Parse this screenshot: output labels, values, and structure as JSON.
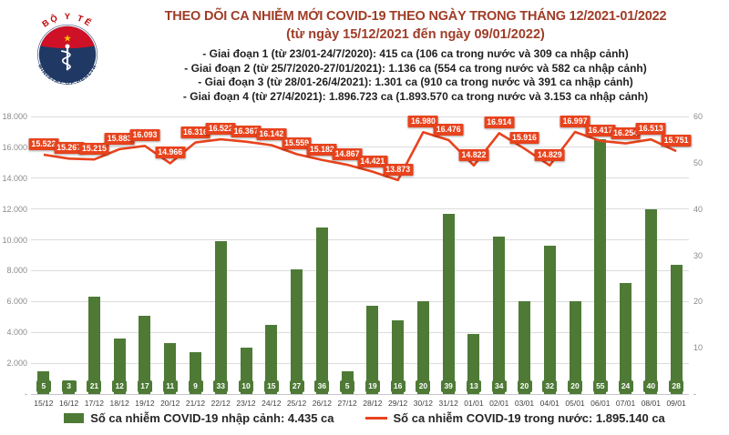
{
  "logo": {
    "arc_top": "BỘ Y TẾ",
    "arc_bottom": "MINISTRY OF HEALTH"
  },
  "header": {
    "title": "THEO DÕI CA NHIỄM MỚI COVID-19 THEO NGÀY TRONG THÁNG 12/2021-01/2022",
    "subtitle": "(từ ngày 15/12/2021 đến ngày 09/01/2022)",
    "bullets": [
      "- Giai đoạn 1 (từ 23/01-24/7/2020): 415 ca (106 ca trong nước và 309 ca nhập cảnh)",
      "- Giai đoạn 2 (từ 25/7/2020-27/01/2021): 1.136 ca (554 ca trong nước và 582 ca nhập cảnh)",
      "- Giai đoạn 3 (từ 28/01-26/4/2021): 1.301 ca (910 ca trong nước và 391 ca nhập cảnh)",
      "- Giai đoạn 4 (từ 27/4/2021): 1.896.723 ca (1.893.570 ca trong nước và 3.153 ca nhập cảnh)"
    ]
  },
  "chart_data": {
    "type": "combo-bar-line",
    "categories": [
      "15/12",
      "16/12",
      "17/12",
      "18/12",
      "19/12",
      "20/12",
      "21/12",
      "22/12",
      "23/12",
      "24/12",
      "25/12",
      "26/12",
      "27/12",
      "28/12",
      "29/12",
      "30/12",
      "31/12",
      "01/01",
      "02/01",
      "03/01",
      "04/01",
      "05/01",
      "06/01",
      "07/01",
      "08/01",
      "09/01"
    ],
    "series": [
      {
        "name": "Số ca nhiễm COVID-19 nhập cảnh",
        "chart": "bar",
        "axis": "right",
        "values": [
          5,
          3,
          21,
          12,
          17,
          11,
          9,
          33,
          10,
          15,
          27,
          36,
          5,
          19,
          16,
          20,
          39,
          13,
          34,
          20,
          32,
          20,
          55,
          24,
          40,
          28
        ]
      },
      {
        "name": "Số ca nhiễm COVID-19 trong nước",
        "chart": "line",
        "axis": "left",
        "values": [
          15522,
          15267,
          15215,
          15883,
          16093,
          14966,
          16316,
          16522,
          16367,
          16142,
          15559,
          15182,
          14867,
          14421,
          13873,
          16980,
          16476,
          14822,
          16914,
          15916,
          14829,
          16997,
          16417,
          16254,
          16513,
          15751
        ]
      }
    ],
    "left_axis": {
      "min": 0,
      "max": 18000,
      "step": 2000,
      "zero_label": "-"
    },
    "right_axis": {
      "min": 0,
      "max": 60,
      "step": 10,
      "zero_label": "-"
    },
    "grid": true,
    "legend_position": "bottom",
    "legend": [
      {
        "label": "Số ca nhiễm COVID-19 nhập cảnh: 4.435 ca"
      },
      {
        "label": "Số ca nhiễm COVID-19 trong nước: 1.895.140 ca"
      }
    ]
  },
  "colors": {
    "bar": "#4E7A36",
    "line": "#E8431D",
    "title": "#A03C26",
    "grid": "#DCDCDC",
    "axis_text": "#8A8A8A",
    "x_text": "#3F3F3F"
  }
}
